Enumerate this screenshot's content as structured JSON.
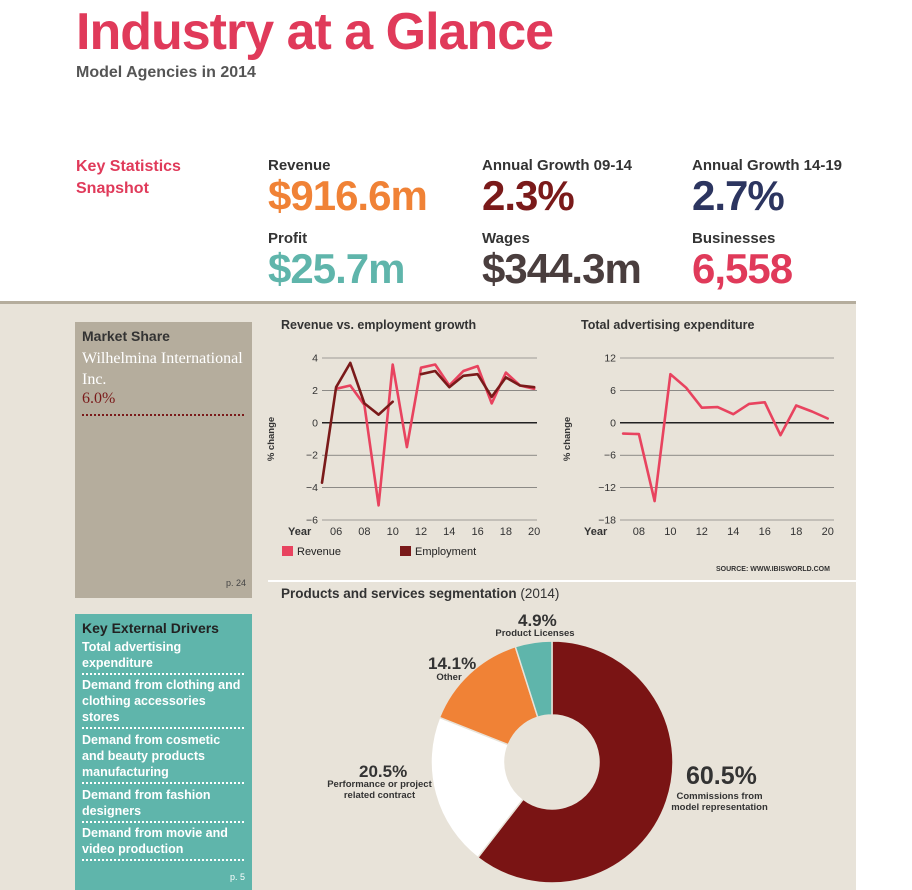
{
  "header": {
    "title": "Industry at a Glance",
    "subtitle": "Model Agencies in 2014"
  },
  "key_stats": {
    "label": "Key Statistics Snapshot",
    "items": [
      {
        "label": "Revenue",
        "value": "$916.6m",
        "color": "#f08236"
      },
      {
        "label": "Annual Growth 09-14",
        "value": "2.3%",
        "color": "#7a1a1a"
      },
      {
        "label": "Annual Growth 14-19",
        "value": "2.7%",
        "color": "#2c3560"
      },
      {
        "label": "Profit",
        "value": "$25.7m",
        "color": "#5fb5ab"
      },
      {
        "label": "Wages",
        "value": "$344.3m",
        "color": "#4a3e3e"
      },
      {
        "label": "Businesses",
        "value": "6,558",
        "color": "#e03a5a"
      }
    ]
  },
  "market_share": {
    "title": "Market Share",
    "company": "Wilhelmina International Inc.",
    "percent": "6.0%",
    "page": "p. 24"
  },
  "drivers": {
    "title": "Key External Drivers",
    "items": [
      "Total advertising expenditure",
      "Demand from clothing and clothing accessories stores",
      "Demand from cosmetic and beauty products manufacturing",
      "Demand from fashion designers",
      "Demand from movie and video production"
    ],
    "page": "p. 5"
  },
  "source": "SOURCE: WWW.IBISWORLD.COM",
  "chart_data": [
    {
      "type": "line",
      "title": "Revenue vs. employment growth",
      "ylabel": "% change",
      "xlabel": "Year",
      "ylim": [
        -6,
        4
      ],
      "yticks": [
        4,
        2,
        0,
        -2,
        -4,
        -6
      ],
      "xticks": [
        "06",
        "08",
        "10",
        "12",
        "14",
        "16",
        "18",
        "20"
      ],
      "xtick_years": [
        2006,
        2008,
        2010,
        2012,
        2014,
        2016,
        2018,
        2020
      ],
      "x": [
        2005,
        2006,
        2007,
        2008,
        2009,
        2010,
        2011,
        2012,
        2013,
        2014,
        2015,
        2016,
        2017,
        2018,
        2019,
        2020
      ],
      "series": [
        {
          "name": "Revenue",
          "color": "#e8435f",
          "values": [
            null,
            2.1,
            2.3,
            1.1,
            -5.1,
            3.6,
            -1.5,
            3.4,
            3.6,
            2.3,
            3.2,
            3.5,
            1.2,
            3.1,
            2.3,
            2.1
          ]
        },
        {
          "name": "Employment",
          "color": "#7a1a1a",
          "values": [
            -3.7,
            2.2,
            3.7,
            1.2,
            0.5,
            1.3,
            null,
            3.0,
            3.2,
            2.2,
            2.9,
            3.0,
            1.6,
            2.8,
            2.3,
            2.2
          ]
        }
      ]
    },
    {
      "type": "line",
      "title": "Total advertising expenditure",
      "ylabel": "% change",
      "xlabel": "Year",
      "ylim": [
        -18,
        12
      ],
      "yticks": [
        12,
        6,
        0,
        -6,
        -12,
        -18
      ],
      "xticks": [
        "08",
        "10",
        "12",
        "14",
        "16",
        "18",
        "20"
      ],
      "xtick_years": [
        2008,
        2010,
        2012,
        2014,
        2016,
        2018,
        2020
      ],
      "x": [
        2007,
        2008,
        2009,
        2010,
        2011,
        2012,
        2013,
        2014,
        2015,
        2016,
        2017,
        2018,
        2019,
        2020
      ],
      "series": [
        {
          "name": "Total advertising expenditure",
          "color": "#e8435f",
          "values": [
            -2.0,
            -2.1,
            -14.5,
            9.0,
            6.5,
            2.8,
            2.9,
            1.6,
            3.5,
            3.8,
            -2.3,
            3.2,
            2.1,
            0.8
          ]
        }
      ]
    },
    {
      "type": "pie",
      "title": "Products and services segmentation",
      "year": "(2014)",
      "slices": [
        {
          "label": "Commissions from model representation",
          "value": 60.5,
          "pct": "60.5%",
          "color": "#7a1414"
        },
        {
          "label": "Performance or project related contract",
          "value": 20.5,
          "pct": "20.5%",
          "color": "#ffffff"
        },
        {
          "label": "Other",
          "value": 14.1,
          "pct": "14.1%",
          "color": "#f08236"
        },
        {
          "label": "Product Licenses",
          "value": 4.9,
          "pct": "4.9%",
          "color": "#5fb5ab"
        }
      ]
    }
  ]
}
